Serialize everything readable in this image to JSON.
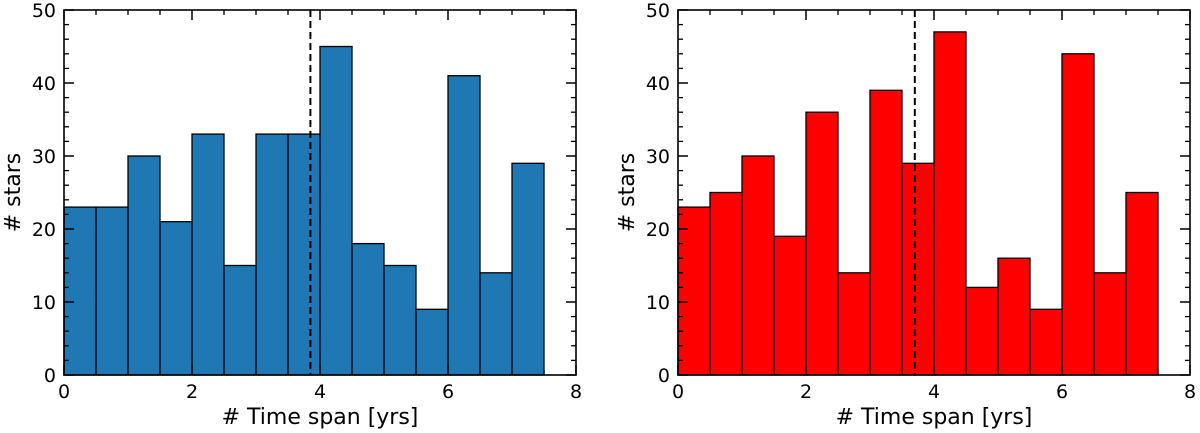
{
  "chart_data": [
    {
      "type": "bar",
      "title": "",
      "xlabel": "# Time span [yrs]",
      "ylabel": "# stars",
      "xlim": [
        0,
        8
      ],
      "ylim": [
        0,
        50
      ],
      "xticks": [
        0,
        2,
        4,
        6,
        8
      ],
      "yticks": [
        0,
        10,
        20,
        30,
        40,
        50
      ],
      "bin_edges": [
        0,
        0.5,
        1.0,
        1.5,
        2.0,
        2.5,
        3.0,
        3.5,
        4.0,
        4.5,
        5.0,
        5.5,
        6.0,
        6.5,
        7.0,
        7.5
      ],
      "values": [
        23,
        23,
        30,
        21,
        33,
        15,
        33,
        33,
        45,
        18,
        15,
        9,
        41,
        14,
        29
      ],
      "median_line_x": 3.85,
      "bar_color": "#1f77b4",
      "edge_color": "#000000",
      "grid": false,
      "legend": "none"
    },
    {
      "type": "bar",
      "title": "",
      "xlabel": "# Time span [yrs]",
      "ylabel": "# stars",
      "xlim": [
        0,
        8
      ],
      "ylim": [
        0,
        50
      ],
      "xticks": [
        0,
        2,
        4,
        6,
        8
      ],
      "yticks": [
        0,
        10,
        20,
        30,
        40,
        50
      ],
      "bin_edges": [
        0,
        0.5,
        1.0,
        1.5,
        2.0,
        2.5,
        3.0,
        3.5,
        4.0,
        4.5,
        5.0,
        5.5,
        6.0,
        6.5,
        7.0,
        7.5
      ],
      "values": [
        23,
        25,
        30,
        19,
        36,
        14,
        39,
        29,
        47,
        12,
        16,
        9,
        44,
        14,
        25
      ],
      "median_line_x": 3.7,
      "bar_color": "#ff0000",
      "edge_color": "#000000",
      "grid": false,
      "legend": "none"
    }
  ]
}
